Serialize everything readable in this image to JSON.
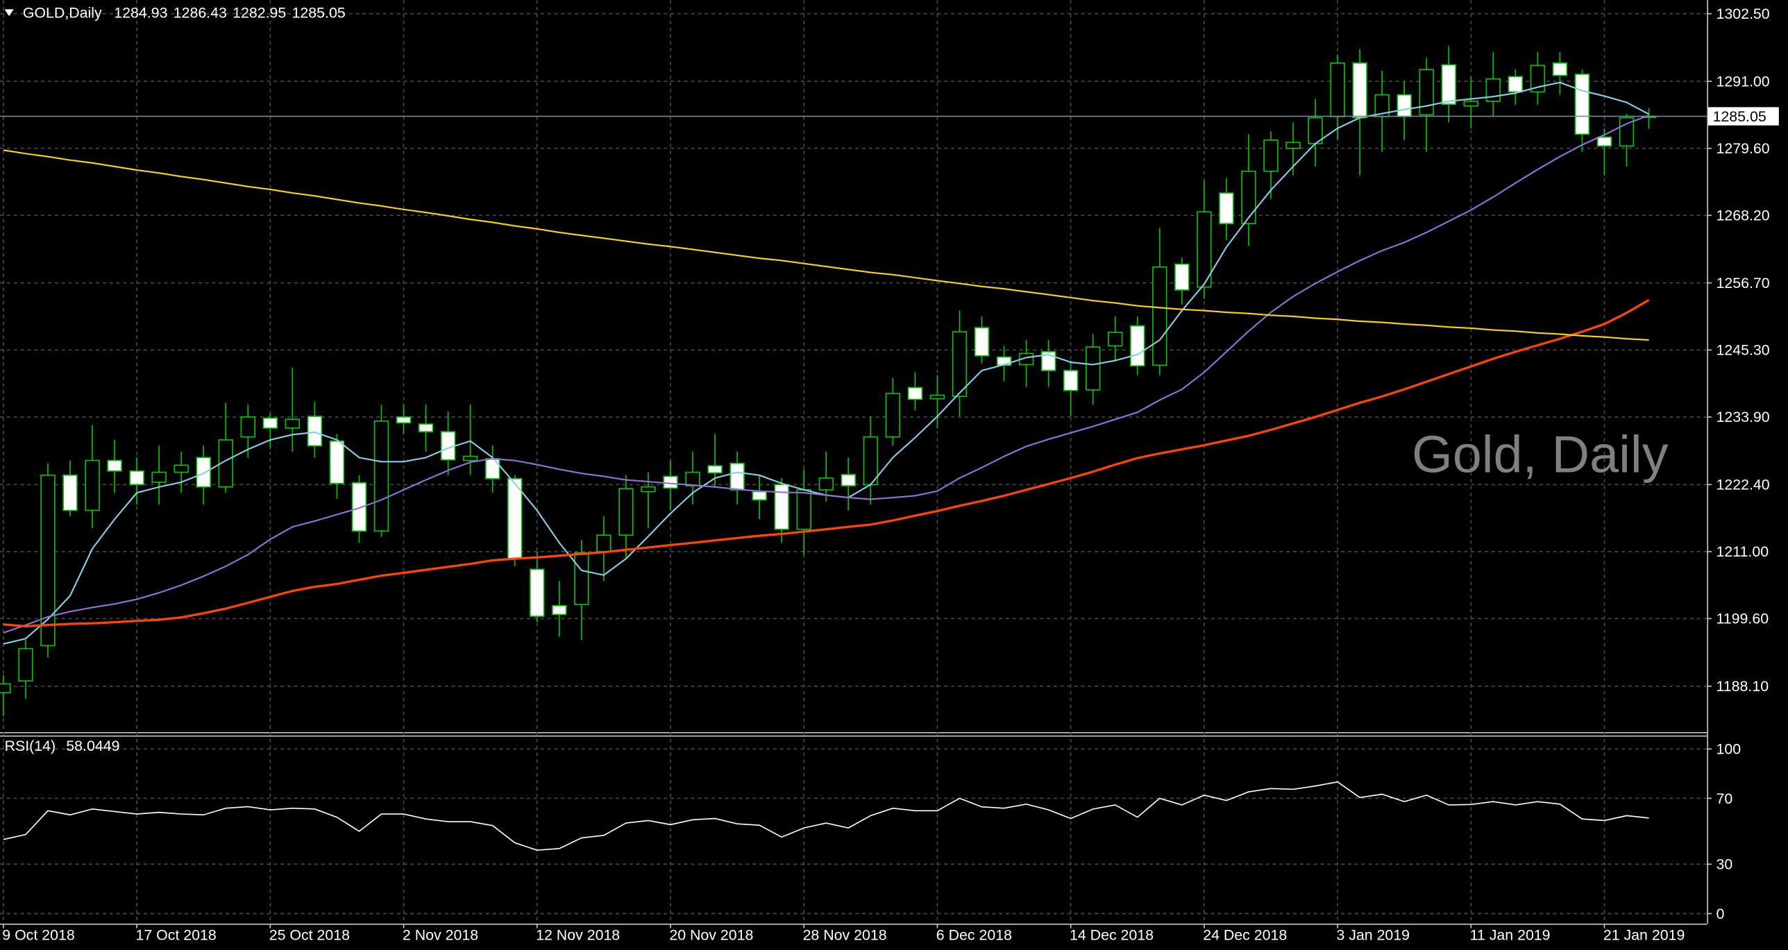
{
  "chart_data": [
    {
      "type": "candlestick",
      "title": "GOLD,Daily",
      "watermark": "Gold, Daily",
      "categories": [
        "9 Oct 2018",
        null,
        null,
        null,
        null,
        null,
        "17 Oct 2018",
        null,
        null,
        null,
        null,
        null,
        "25 Oct 2018",
        null,
        null,
        null,
        null,
        null,
        "2 Nov 2018",
        null,
        null,
        null,
        null,
        null,
        "12 Nov 2018",
        null,
        null,
        null,
        null,
        null,
        "20 Nov 2018",
        null,
        null,
        null,
        null,
        null,
        "28 Nov 2018",
        null,
        null,
        null,
        null,
        null,
        "6 Dec 2018",
        null,
        null,
        null,
        null,
        null,
        "14 Dec 2018",
        null,
        null,
        null,
        null,
        null,
        "24 Dec 2018",
        null,
        null,
        null,
        null,
        null,
        "3 Jan 2019",
        null,
        null,
        null,
        null,
        null,
        "11 Jan 2019",
        null,
        null,
        null,
        null,
        null,
        "21 Jan 2019",
        null,
        null
      ],
      "open": [
        1187,
        1189,
        1195,
        1224,
        1218,
        1226.5,
        1224.7,
        1222.8,
        1224.5,
        1227,
        1222,
        1230.5,
        1233.7,
        1232,
        1234,
        1229.8,
        1222.7,
        1214.5,
        1233.9,
        1232.7,
        1231.4,
        1226.5,
        1226.8,
        1223.4,
        1208,
        1201.8,
        1202,
        1211,
        1213.8,
        1221.2,
        1223.8,
        1222.2,
        1225.6,
        1226,
        1221.2,
        1222.4,
        1214.8,
        1221.5,
        1224.1,
        1222.4,
        1230.5,
        1238.9,
        1237,
        1237.4,
        1249.1,
        1244.1,
        1242.8,
        1245,
        1241.8,
        1238.5,
        1246,
        1249.4,
        1242.7,
        1259.9,
        1256,
        1272,
        1266.8,
        1275.7,
        1279.6,
        1280.4,
        1285,
        1294.1,
        1285,
        1288.7,
        1285.3,
        1293.8,
        1286.8,
        1287.6,
        1291.8,
        1289.2,
        1294.1,
        1292.2,
        1281.5,
        1280,
        1284.93
      ],
      "high": [
        1190,
        1196,
        1226,
        1226.5,
        1232.5,
        1230,
        1227,
        1229,
        1228,
        1229,
        1236.3,
        1236,
        1234.5,
        1242.3,
        1236.5,
        1231,
        1224,
        1236,
        1236,
        1236,
        1234.8,
        1236,
        1229,
        1224,
        1211,
        1206,
        1213,
        1217,
        1224,
        1224.5,
        1226.5,
        1228,
        1231,
        1228,
        1224,
        1223.5,
        1225,
        1228,
        1227,
        1234,
        1240.5,
        1241.5,
        1241,
        1252,
        1251,
        1246,
        1247,
        1247,
        1243.5,
        1248,
        1251,
        1251,
        1266,
        1261,
        1274,
        1274.5,
        1282,
        1282.5,
        1284,
        1288,
        1295.5,
        1296.5,
        1292.8,
        1291,
        1295,
        1297,
        1291.8,
        1296,
        1293,
        1296,
        1296,
        1293,
        1283,
        1285.5,
        1286.43
      ],
      "low": [
        1183,
        1186,
        1193,
        1217,
        1215,
        1221,
        1219,
        1219,
        1221,
        1219,
        1221,
        1227,
        1228.5,
        1228,
        1227,
        1220,
        1212.5,
        1213.5,
        1231,
        1228,
        1224,
        1224,
        1221,
        1208.5,
        1199,
        1196.5,
        1196,
        1206,
        1210,
        1215,
        1218,
        1219,
        1222,
        1219,
        1216.5,
        1212.5,
        1210.5,
        1219.5,
        1218,
        1219,
        1229,
        1235,
        1232,
        1234,
        1243,
        1240,
        1239,
        1239,
        1234,
        1236,
        1243.5,
        1241,
        1241,
        1253,
        1254,
        1264,
        1263,
        1271,
        1275,
        1276.5,
        1281,
        1275,
        1279,
        1281,
        1279,
        1284,
        1283,
        1285,
        1287,
        1287,
        1288.7,
        1279,
        1275,
        1276.5,
        1282.95
      ],
      "close": [
        1188.5,
        1194.5,
        1224,
        1218,
        1226.5,
        1224.7,
        1222.4,
        1224.5,
        1225.7,
        1222,
        1230,
        1233.9,
        1232,
        1233.5,
        1229,
        1222.6,
        1214.5,
        1233.2,
        1232.9,
        1231.4,
        1226.6,
        1227.2,
        1223.4,
        1209.8,
        1200,
        1200.3,
        1210.8,
        1213.8,
        1221.7,
        1222,
        1221.8,
        1224.5,
        1224.4,
        1221.5,
        1219.8,
        1214.8,
        1221.5,
        1223.5,
        1222.2,
        1230.5,
        1237.9,
        1236.9,
        1237.6,
        1248.4,
        1244.3,
        1242.7,
        1244.7,
        1241.8,
        1238.4,
        1245.8,
        1248.3,
        1242.6,
        1259.4,
        1255.5,
        1268.8,
        1266.8,
        1275.7,
        1281,
        1280.6,
        1284.8,
        1294.1,
        1284.8,
        1288.7,
        1285,
        1293,
        1287.1,
        1287.6,
        1291.4,
        1289.2,
        1293.7,
        1292,
        1282,
        1280,
        1284.8,
        1285.05
      ],
      "up_color": "#00c800",
      "down_color": "#ffffff",
      "series": [
        {
          "color": "#87ceeb",
          "values": [
            1195.3,
            1196.2,
            1199.5,
            1203.5,
            1211.5,
            1216.5,
            1221,
            1222,
            1222.8,
            1224.3,
            1226.5,
            1228.4,
            1230,
            1230.9,
            1231.3,
            1230,
            1227,
            1226.3,
            1226.3,
            1227,
            1228.6,
            1229.8,
            1227,
            1222.6,
            1218,
            1212.5,
            1207.8,
            1207,
            1209.8,
            1213.6,
            1217.5,
            1221,
            1223.5,
            1224.5,
            1224,
            1222.6,
            1221.5,
            1220.6,
            1220.2,
            1222.4,
            1227,
            1230.4,
            1234,
            1238,
            1241.8,
            1242.8,
            1244,
            1244.5,
            1243.2,
            1242.8,
            1243.5,
            1244.5,
            1247,
            1252,
            1256.5,
            1262.8,
            1267.8,
            1272.5,
            1276.5,
            1280.4,
            1283,
            1284.8,
            1285.5,
            1286.2,
            1286.8,
            1287.6,
            1288,
            1288.4,
            1289,
            1290,
            1290.8,
            1289.4,
            1288.5,
            1287.4,
            1285.4
          ]
        },
        {
          "color": "#9370db",
          "values": [
            1197.2,
            1198.5,
            1199.9,
            1200.8,
            1201.5,
            1202.1,
            1202.9,
            1204,
            1205.3,
            1206.8,
            1208.5,
            1210.5,
            1213.1,
            1215.2,
            1216.2,
            1217.3,
            1218.4,
            1219.8,
            1221.5,
            1223.2,
            1224.8,
            1226.2,
            1226.8,
            1226.5,
            1225.8,
            1225,
            1224.3,
            1223.8,
            1223.2,
            1222.9,
            1222.6,
            1222.3,
            1222,
            1221.6,
            1221.3,
            1221.1,
            1221,
            1220.6,
            1220.2,
            1219.9,
            1220.2,
            1220.5,
            1221.3,
            1223.5,
            1225.3,
            1227.2,
            1228.9,
            1230.1,
            1231.2,
            1232.3,
            1233.5,
            1234.7,
            1236.8,
            1238.6,
            1241.5,
            1245,
            1248.5,
            1251.7,
            1254.4,
            1256.6,
            1258.6,
            1260.5,
            1262.2,
            1263.6,
            1265.3,
            1267.2,
            1269.1,
            1271.3,
            1273.7,
            1276,
            1278.2,
            1280.2,
            1281.9,
            1283.8,
            1285.2
          ]
        },
        {
          "color": "#ff4500",
          "values": [
            1198.6,
            1198.3,
            1198.5,
            1198.7,
            1198.8,
            1199,
            1199.2,
            1199.4,
            1199.8,
            1200.5,
            1201.3,
            1202.3,
            1203.3,
            1204.3,
            1205,
            1205.5,
            1206.2,
            1206.9,
            1207.4,
            1207.9,
            1208.4,
            1208.9,
            1209.5,
            1209.8,
            1210,
            1210.3,
            1210.6,
            1210.9,
            1211.3,
            1211.7,
            1212.1,
            1212.5,
            1212.9,
            1213.3,
            1213.7,
            1214,
            1214.4,
            1214.8,
            1215.2,
            1215.6,
            1216.3,
            1217.1,
            1217.9,
            1218.8,
            1219.6,
            1220.5,
            1221.5,
            1222.5,
            1223.5,
            1224.6,
            1225.8,
            1226.9,
            1227.7,
            1228.4,
            1229.1,
            1229.9,
            1230.7,
            1231.7,
            1232.8,
            1233.9,
            1235.1,
            1236.3,
            1237.4,
            1238.6,
            1239.9,
            1241.2,
            1242.5,
            1243.8,
            1245,
            1246.1,
            1247.2,
            1248.4,
            1249.7,
            1251.6,
            1253.8
          ]
        },
        {
          "color": "#ffd700",
          "values": [
            1279.3,
            1278.7,
            1278.2,
            1277.6,
            1277.1,
            1276.5,
            1275.9,
            1275.4,
            1274.8,
            1274.3,
            1273.7,
            1273.1,
            1272.6,
            1272,
            1271.5,
            1270.9,
            1270.3,
            1269.8,
            1269.2,
            1268.7,
            1268.1,
            1267.5,
            1267,
            1266.4,
            1265.9,
            1265.3,
            1264.8,
            1264.3,
            1263.8,
            1263.3,
            1262.9,
            1262.4,
            1261.9,
            1261.4,
            1260.9,
            1260.5,
            1260,
            1259.5,
            1259,
            1258.5,
            1258.1,
            1257.6,
            1257.1,
            1256.6,
            1256.1,
            1255.7,
            1255.2,
            1254.7,
            1254.2,
            1253.7,
            1253.3,
            1252.8,
            1252.5,
            1252.2,
            1252,
            1251.7,
            1251.5,
            1251.2,
            1251,
            1250.7,
            1250.5,
            1250.2,
            1250,
            1249.7,
            1249.5,
            1249.2,
            1249,
            1248.7,
            1248.5,
            1248.2,
            1248,
            1247.7,
            1247.5,
            1247.2,
            1247
          ]
        }
      ],
      "ylim": [
        1180.3,
        1304.8
      ],
      "yticks": [
        {
          "value": 1302.5,
          "label": "1302.50"
        },
        {
          "value": 1291,
          "label": "1291.00"
        },
        {
          "value": 1279.6,
          "label": "1279.60"
        },
        {
          "value": 1268.2,
          "label": "1268.20"
        },
        {
          "value": 1256.7,
          "label": "1256.70"
        },
        {
          "value": 1245.3,
          "label": "1245.30"
        },
        {
          "value": 1233.9,
          "label": "1233.90"
        },
        {
          "value": 1222.4,
          "label": "1222.40"
        },
        {
          "value": 1211,
          "label": "1211.00"
        },
        {
          "value": 1199.6,
          "label": "1199.60"
        },
        {
          "value": 1188.1,
          "label": "1188.10"
        }
      ],
      "grid": true
    },
    {
      "type": "line",
      "title": "RSI(14)",
      "color": "#ffffff",
      "values": [
        45,
        48,
        62.5,
        60,
        63.5,
        62,
        60.5,
        61.5,
        60.5,
        60,
        64,
        65,
        63,
        64,
        63.5,
        58.5,
        50,
        60.5,
        60.5,
        57.5,
        55.8,
        55.8,
        53.5,
        43,
        38.5,
        39.5,
        46,
        47.5,
        55,
        56.5,
        54,
        57,
        57.8,
        54.5,
        53.7,
        46.5,
        52,
        55,
        52,
        59.5,
        64,
        62.5,
        62.5,
        70,
        64.8,
        64,
        66.5,
        63,
        57.8,
        63.5,
        66,
        58.5,
        70,
        66,
        72,
        68.7,
        74,
        76,
        75.5,
        77.5,
        80,
        70.5,
        72.5,
        68,
        72,
        66,
        66.3,
        68,
        66,
        68,
        66.5,
        57.5,
        56.5,
        59.5,
        58.0449
      ],
      "ylim": [
        -6.1,
        107.5
      ],
      "yticks": [
        100,
        70,
        30,
        0
      ],
      "grid": true
    }
  ]
}
